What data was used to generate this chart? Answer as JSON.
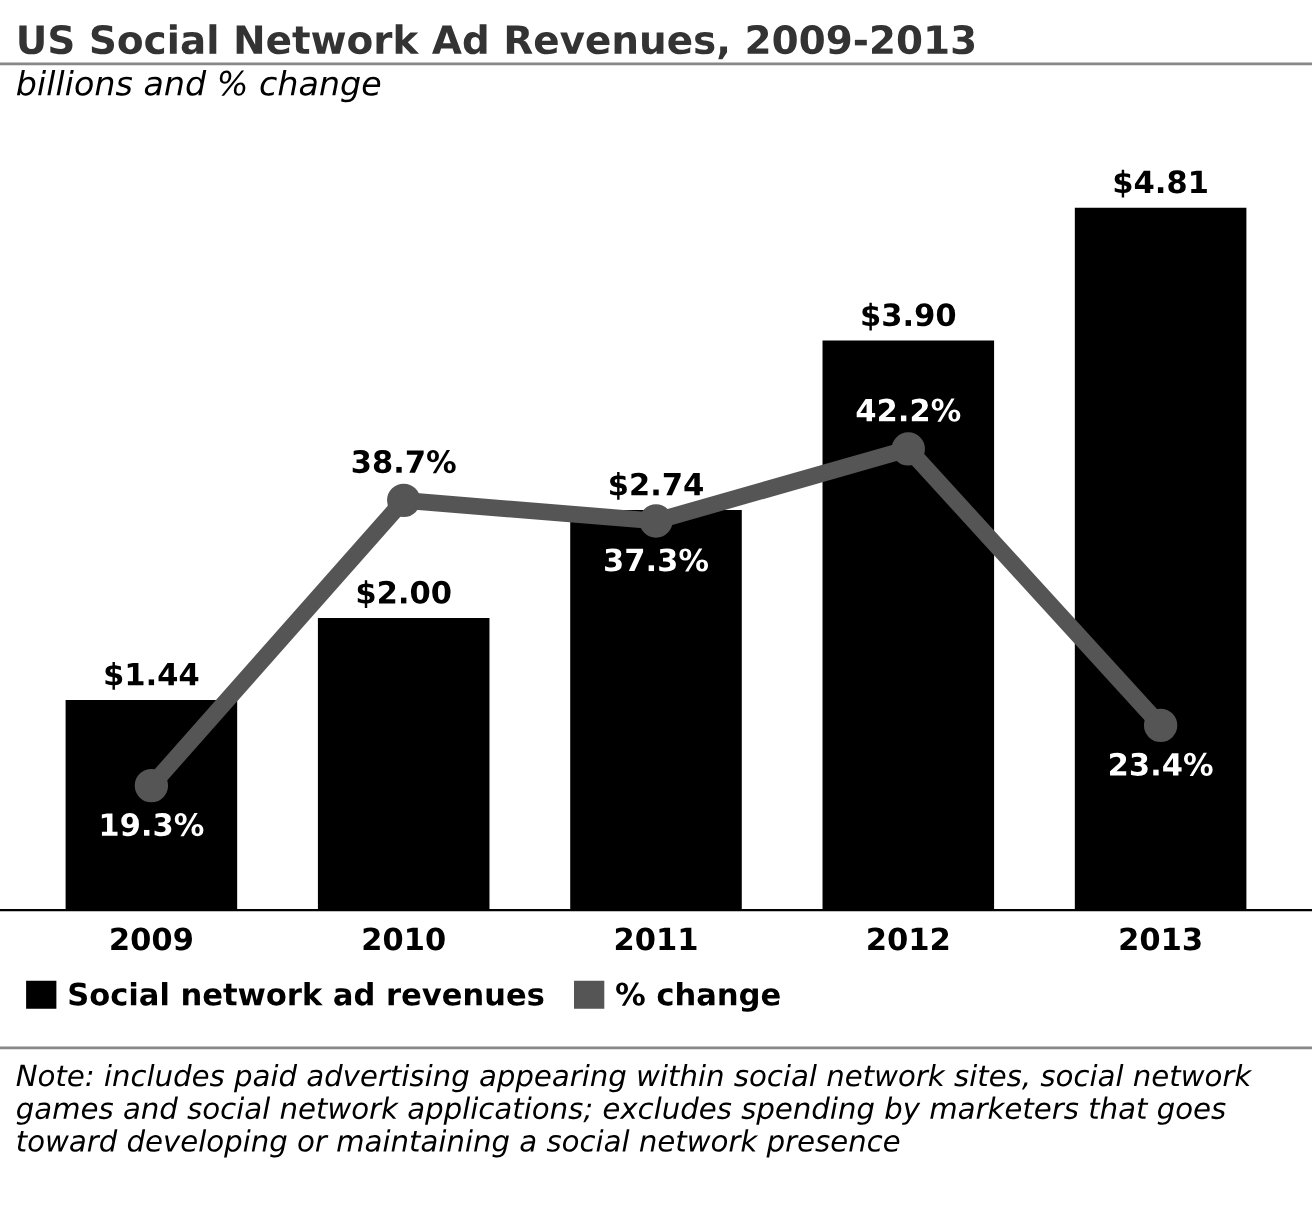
{
  "chart_data": {
    "type": "bar",
    "title": "US Social Network Ad Revenues, 2009-2013",
    "subtitle": "billions and % change",
    "categories": [
      "2009",
      "2010",
      "2011",
      "2012",
      "2013"
    ],
    "series": [
      {
        "name": "Social network ad revenues",
        "color": "#000000",
        "values": [
          1.44,
          2.0,
          2.74,
          3.9,
          4.81
        ],
        "value_labels": [
          "$1.44",
          "$2.00",
          "$2.74",
          "$3.90",
          "$4.81"
        ]
      },
      {
        "name": "% change",
        "type": "line",
        "axis": "y2",
        "color": "#555555",
        "values": [
          19.3,
          38.7,
          37.3,
          42.2,
          23.4
        ],
        "value_labels": [
          "19.3%",
          "38.7%",
          "37.3%",
          "42.2%",
          "23.4%"
        ]
      }
    ],
    "tick_labels": "x",
    "grid": false,
    "legend": "bottom",
    "marker": "circle",
    "line_style": "solid",
    "annotations": [
      "Note: includes paid advertising appearing within social network sites, social network games and social network applications; excludes spending by marketers that goes toward developing or maintaining a social network presence"
    ]
  }
}
